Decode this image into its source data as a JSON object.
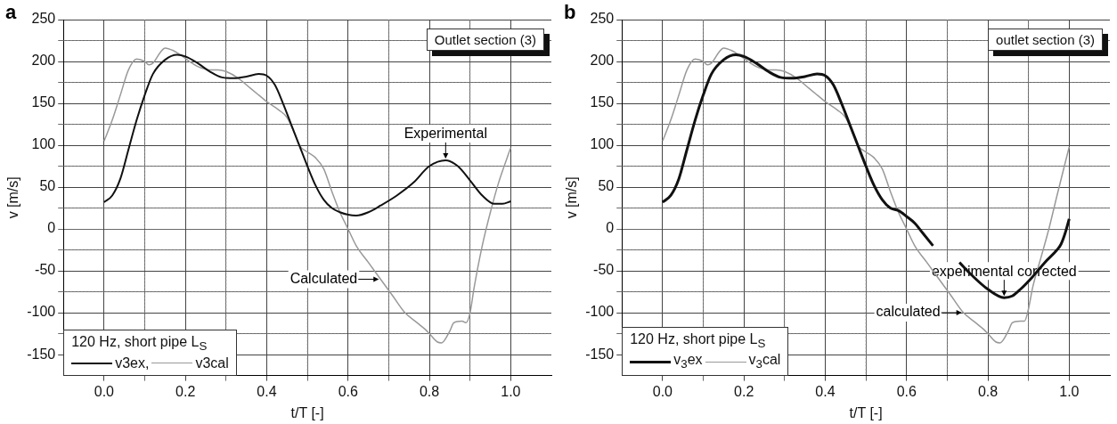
{
  "chart_data": [
    {
      "type": "line",
      "title": "a",
      "xlabel": "t/T [-]",
      "ylabel": "v [m/s]",
      "legend_title": "120 Hz, short pipe L$_{S}$",
      "legend": "bottom left",
      "grid": true,
      "marker": "none",
      "line_style": "solid",
      "xlim": [
        -0.1,
        1.1
      ],
      "xticks": [
        {
          "value": 0,
          "label": "0.0"
        },
        {
          "value": 0.1,
          "label": null
        },
        0.2,
        {
          "value": 0.3,
          "label": null
        },
        0.4,
        {
          "value": 0.5,
          "label": null
        },
        0.6,
        {
          "value": 0.7,
          "label": null
        },
        0.8,
        {
          "value": 0.9,
          "label": null
        },
        {
          "value": 1,
          "label": "1.0"
        }
      ],
      "ylim": [
        -175,
        250
      ],
      "yticks": [
        -150,
        {
          "value": -125,
          "label": null
        },
        -100,
        {
          "value": -75,
          "label": null
        },
        -50,
        {
          "value": -25,
          "label": null
        },
        0,
        {
          "value": 25,
          "label": null
        },
        50,
        {
          "value": 75,
          "label": null
        },
        100,
        {
          "value": 125,
          "label": null
        },
        150,
        {
          "value": 175,
          "label": null
        },
        200,
        {
          "value": 225,
          "label": null
        },
        250
      ],
      "annotations": [
        {
          "text": "Experimental",
          "x": 0.84,
          "y": 82
        },
        {
          "text": "Calculated",
          "x": 0.68,
          "y": -60
        },
        "Outlet section (3)"
      ],
      "series": [
        {
          "name": "v3ex,",
          "color": "#111111",
          "x": [
            0,
            0.02,
            0.04,
            0.06,
            0.08,
            0.1,
            0.12,
            0.15,
            0.18,
            0.2,
            0.23,
            0.26,
            0.29,
            0.32,
            0.35,
            0.38,
            0.4,
            0.42,
            0.44,
            0.46,
            0.48,
            0.5,
            0.52,
            0.54,
            0.56,
            0.58,
            0.6,
            0.62,
            0.65,
            0.68,
            0.72,
            0.76,
            0.8,
            0.84,
            0.87,
            0.9,
            0.93,
            0.96,
            0.98,
            1
          ],
          "values": [
            32,
            40,
            60,
            95,
            130,
            160,
            185,
            202,
            208,
            206,
            198,
            188,
            181,
            180,
            182,
            185,
            183,
            172,
            150,
            125,
            100,
            75,
            52,
            35,
            25,
            20,
            17,
            16,
            20,
            28,
            40,
            55,
            75,
            82,
            75,
            58,
            40,
            30,
            30,
            33
          ]
        },
        {
          "name": "v3cal",
          "color": "#999999",
          "x": [
            0,
            0.02,
            0.04,
            0.06,
            0.08,
            0.1,
            0.11,
            0.12,
            0.14,
            0.15,
            0.17,
            0.19,
            0.21,
            0.23,
            0.26,
            0.28,
            0.3,
            0.33,
            0.36,
            0.38,
            0.4,
            0.43,
            0.45,
            0.47,
            0.48,
            0.5,
            0.52,
            0.54,
            0.56,
            0.58,
            0.6,
            0.62,
            0.65,
            0.68,
            0.71,
            0.74,
            0.77,
            0.79,
            0.8,
            0.82,
            0.83,
            0.85,
            0.86,
            0.88,
            0.89,
            0.9,
            0.91,
            0.93,
            0.95,
            0.97,
            1
          ],
          "values": [
            105,
            130,
            160,
            190,
            203,
            200,
            196,
            198,
            212,
            216,
            213,
            207,
            200,
            194,
            190,
            190,
            188,
            180,
            168,
            160,
            152,
            142,
            133,
            112,
            100,
            92,
            85,
            72,
            45,
            20,
            0,
            -20,
            -40,
            -60,
            -80,
            -100,
            -112,
            -120,
            -125,
            -135,
            -136,
            -122,
            -112,
            -110,
            -112,
            -100,
            -70,
            -20,
            20,
            55,
            97
          ]
        }
      ]
    },
    {
      "type": "line",
      "title": "b",
      "xlabel": "t/T [-]",
      "ylabel": "v [m/s]",
      "legend_title": "120 Hz, short pipe L$_{S}$",
      "legend": "bottom left",
      "grid": true,
      "marker": "none",
      "line_style": "solid",
      "xlim": [
        -0.1,
        1.1
      ],
      "xticks": [
        {
          "value": 0,
          "label": "0.0"
        },
        {
          "value": 0.1,
          "label": null
        },
        0.2,
        {
          "value": 0.3,
          "label": null
        },
        0.4,
        {
          "value": 0.5,
          "label": null
        },
        0.6,
        {
          "value": 0.7,
          "label": null
        },
        0.8,
        {
          "value": 0.9,
          "label": null
        },
        {
          "value": 1,
          "label": "1.0"
        }
      ],
      "ylim": [
        -175,
        250
      ],
      "yticks": [
        -150,
        {
          "value": -125,
          "label": null
        },
        -100,
        {
          "value": -75,
          "label": null
        },
        -50,
        {
          "value": -25,
          "label": null
        },
        0,
        {
          "value": 25,
          "label": null
        },
        50,
        {
          "value": 75,
          "label": null
        },
        100,
        {
          "value": 125,
          "label": null
        },
        150,
        {
          "value": 175,
          "label": null
        },
        200,
        {
          "value": 225,
          "label": null
        },
        250
      ],
      "annotations": [
        {
          "text": "experimental corrected",
          "x": 0.84,
          "y": -82
        },
        {
          "text": "calculated",
          "x": 0.74,
          "y": -100
        },
        "outlet section (3)"
      ],
      "series": [
        {
          "name": "v$_{3}$ex",
          "color": "#111111",
          "x": [
            0,
            0.02,
            0.04,
            0.06,
            0.08,
            0.1,
            0.12,
            0.15,
            0.18,
            0.2,
            0.23,
            0.26,
            0.29,
            0.32,
            0.35,
            0.38,
            0.4,
            0.42,
            0.44,
            0.46,
            0.48,
            0.5,
            0.52,
            0.54,
            0.56,
            0.58,
            0.6,
            0.62,
            0.64,
            0.665,
            0.7,
            0.73,
            0.76,
            0.8,
            0.84,
            0.86,
            0.88,
            0.91,
            0.94,
            0.97,
            0.98,
            0.99,
            1
          ],
          "values": [
            32,
            40,
            60,
            95,
            130,
            160,
            185,
            202,
            208,
            206,
            198,
            188,
            181,
            180,
            182,
            185,
            183,
            172,
            150,
            125,
            100,
            75,
            52,
            35,
            25,
            22,
            15,
            7,
            -5,
            -20,
            null,
            -40,
            -55,
            -72,
            -82,
            -80,
            -72,
            -57,
            -40,
            -25,
            -18,
            -5,
            12
          ]
        },
        {
          "name": "v$_{3}$cal",
          "color": "#999999",
          "x": [
            0,
            0.02,
            0.04,
            0.06,
            0.08,
            0.1,
            0.11,
            0.12,
            0.14,
            0.15,
            0.17,
            0.19,
            0.21,
            0.23,
            0.26,
            0.28,
            0.3,
            0.33,
            0.36,
            0.38,
            0.4,
            0.43,
            0.45,
            0.47,
            0.48,
            0.5,
            0.52,
            0.54,
            0.56,
            0.58,
            0.6,
            0.62,
            0.65,
            0.68,
            0.71,
            0.74,
            0.77,
            0.79,
            0.8,
            0.82,
            0.83,
            0.85,
            0.86,
            0.88,
            0.89,
            0.9,
            0.91,
            0.93,
            0.95,
            0.97,
            1
          ],
          "values": [
            105,
            130,
            160,
            190,
            203,
            200,
            196,
            198,
            212,
            216,
            213,
            207,
            200,
            194,
            190,
            190,
            188,
            180,
            168,
            160,
            152,
            142,
            133,
            112,
            100,
            92,
            85,
            72,
            45,
            20,
            0,
            -20,
            -40,
            -60,
            -80,
            -100,
            -112,
            -120,
            -125,
            -135,
            -136,
            -122,
            -112,
            -110,
            -110,
            -95,
            -70,
            -35,
            0,
            40,
            98
          ]
        }
      ]
    }
  ]
}
